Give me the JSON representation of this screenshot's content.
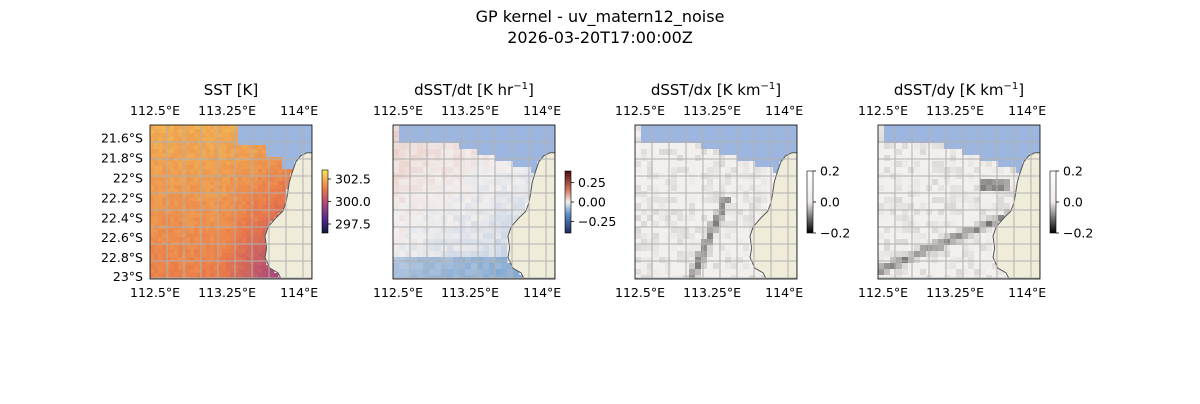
{
  "figure": {
    "title_line1": "GP kernel - uv_matern12_noise",
    "title_line2": "2026-03-20T17:00:00Z"
  },
  "colors": {
    "ocean_mask": "#9db6e0",
    "land": "#efedda",
    "coast": "#555555",
    "grid": "#b0b0b0"
  },
  "chart_data": [
    {
      "type": "heatmap",
      "title": "SST [K]",
      "lon_ticks": [
        "112.5°E",
        "113.25°E",
        "114°E"
      ],
      "lat_ticks": [
        "21.6°S",
        "21.8°S",
        "22°S",
        "22.2°S",
        "22.4°S",
        "22.6°S",
        "22.8°S",
        "23°S"
      ],
      "colorbar": {
        "cmap": "thermal",
        "ticks": [
          "302.5",
          "300.0",
          "297.5"
        ],
        "range": [
          296.5,
          303.5
        ]
      }
    },
    {
      "type": "heatmap",
      "title": "dSST/dt [K hr",
      "title_exp": "−1",
      "title_end": "]",
      "lon_ticks": [
        "112.5°E",
        "113.25°E",
        "114°E"
      ],
      "colorbar": {
        "cmap": "balance",
        "ticks": [
          "0.25",
          "0.00",
          "−0.25"
        ],
        "range": [
          -0.4,
          0.4
        ]
      }
    },
    {
      "type": "heatmap",
      "title": "dSST/dx [K km",
      "title_exp": "−1",
      "title_end": "]",
      "lon_ticks": [
        "112.5°E",
        "113.25°E",
        "114°E"
      ],
      "colorbar": {
        "cmap": "gray",
        "ticks": [
          "0.2",
          "0.0",
          "−0.2"
        ],
        "range": [
          -0.2,
          0.2
        ]
      }
    },
    {
      "type": "heatmap",
      "title": "dSST/dy [K km",
      "title_exp": "−1",
      "title_end": "]",
      "lon_ticks": [
        "112.5°E",
        "113.25°E",
        "114°E"
      ],
      "colorbar": {
        "cmap": "gray",
        "ticks": [
          "0.2",
          "0.0",
          "−0.2"
        ],
        "range": [
          -0.2,
          0.2
        ]
      }
    }
  ]
}
